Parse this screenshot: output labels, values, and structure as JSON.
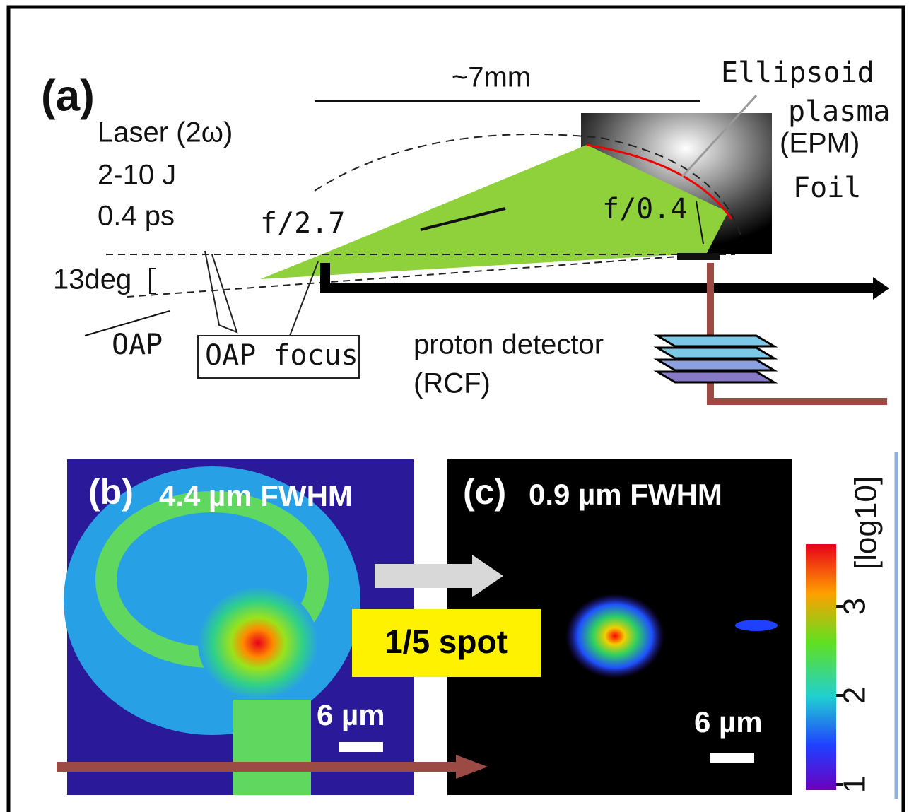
{
  "panel_a": {
    "label": "(a)",
    "distance": "~7mm",
    "ellipsoid": "Ellipsoid",
    "plasma": "plasma",
    "epm": "(EPM)",
    "foil": "Foil",
    "laser": "Laser (2ω)",
    "energy": "2-10 J",
    "duration": "0.4 ps",
    "f_oap": "f/2.7",
    "f_epm": "f/0.4",
    "angle": "13deg",
    "oap": "OAP",
    "oap_focus": "OAP focus",
    "detector": "proton detector",
    "rcf": "(RCF)"
  },
  "panel_b": {
    "label": "(b)",
    "fwhm": "4.4 µm FWHM",
    "scale": "6 µm"
  },
  "panel_c": {
    "label": "(c)",
    "fwhm": "0.9 µm FWHM",
    "scale": "6 µm"
  },
  "reduction": "1/5 spot",
  "colorbar": {
    "label": "[log10]",
    "ticks": [
      1,
      2,
      3
    ]
  }
}
